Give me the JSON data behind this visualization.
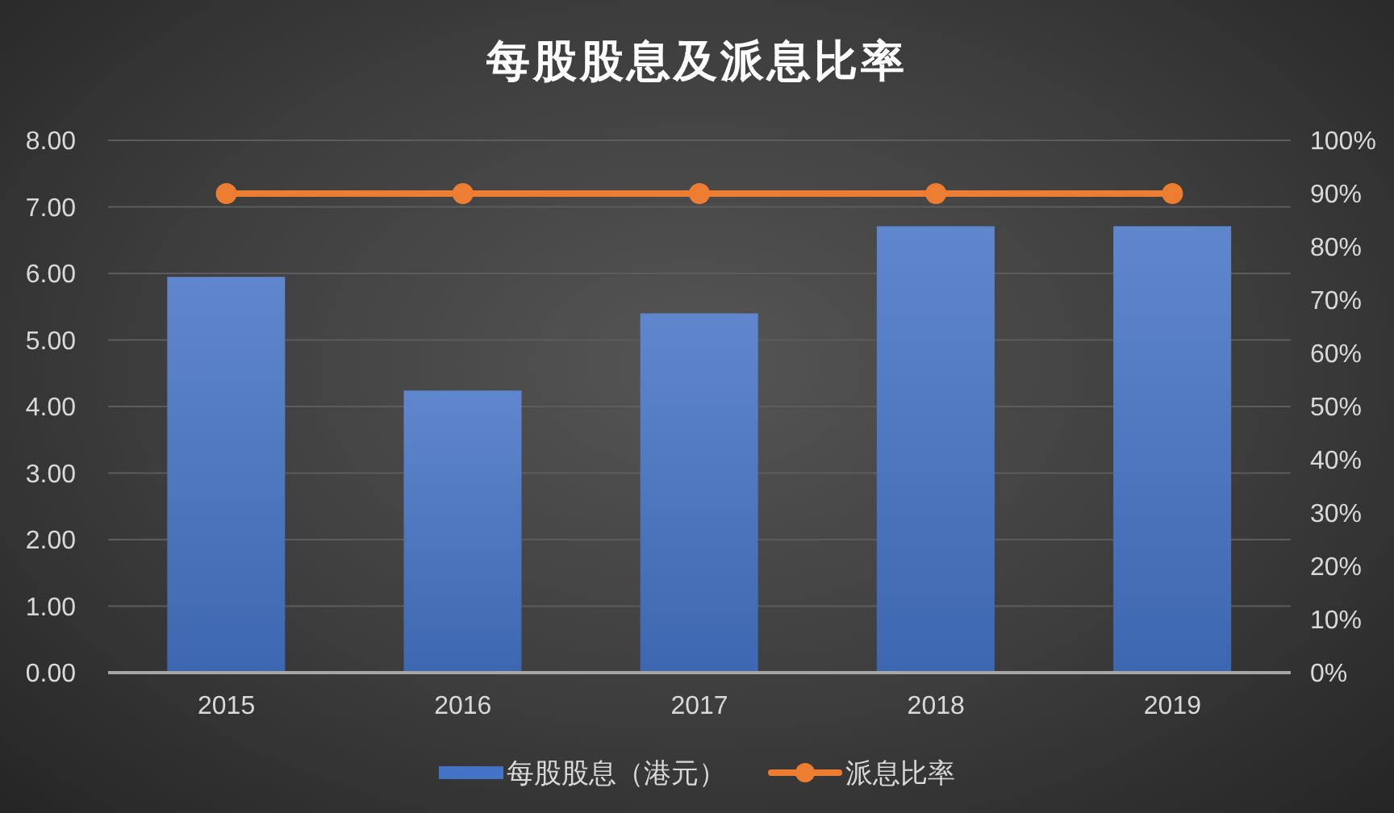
{
  "chart_data": {
    "type": "bar",
    "title": "每股股息及派息比率",
    "categories": [
      "2015",
      "2016",
      "2017",
      "2018",
      "2019"
    ],
    "series": [
      {
        "name": "每股股息（港元）",
        "color": "#4472c4",
        "values": [
          5.95,
          4.24,
          5.4,
          6.71,
          6.71
        ]
      },
      {
        "name": "派息比率",
        "type": "line",
        "axis": "y2",
        "color": "#ed7d31",
        "values": [
          90,
          90,
          90,
          90,
          90
        ]
      }
    ],
    "ylim": [
      0,
      8
    ],
    "yticks": [
      {
        "value": 0,
        "label": "0.00"
      },
      {
        "value": 1,
        "label": "1.00"
      },
      {
        "value": 2,
        "label": "2.00"
      },
      {
        "value": 3,
        "label": "3.00"
      },
      {
        "value": 4,
        "label": "4.00"
      },
      {
        "value": 5,
        "label": "5.00"
      },
      {
        "value": 6,
        "label": "6.00"
      },
      {
        "value": 7,
        "label": "7.00"
      },
      {
        "value": 8,
        "label": "8.00"
      }
    ],
    "y2lim": [
      0,
      100
    ],
    "y2ticks": [
      {
        "value": 0,
        "label": "0%"
      },
      {
        "value": 10,
        "label": "10%"
      },
      {
        "value": 20,
        "label": "20%"
      },
      {
        "value": 30,
        "label": "30%"
      },
      {
        "value": 40,
        "label": "40%"
      },
      {
        "value": 50,
        "label": "50%"
      },
      {
        "value": 60,
        "label": "60%"
      },
      {
        "value": 70,
        "label": "70%"
      },
      {
        "value": 80,
        "label": "80%"
      },
      {
        "value": 90,
        "label": "90%"
      },
      {
        "value": 100,
        "label": "100%"
      }
    ],
    "grid": "y",
    "legend": "bottom",
    "marker": "circle"
  }
}
